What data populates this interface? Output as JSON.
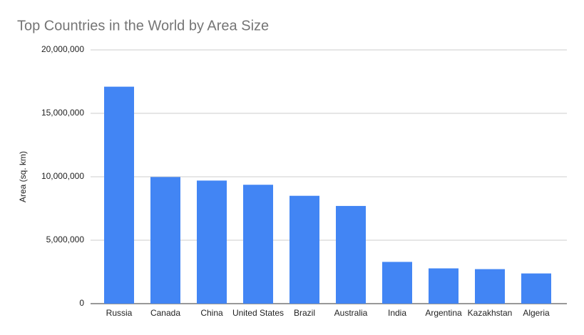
{
  "chart_data": {
    "type": "bar",
    "title": "Top Countries in the World by Area Size",
    "y_label": "Area (sq. km)",
    "categories": [
      "Russia",
      "Canada",
      "China",
      "United States",
      "Brazil",
      "Australia",
      "India",
      "Argentina",
      "Kazakhstan",
      "Algeria"
    ],
    "values": [
      17100000,
      9980000,
      9700000,
      9370000,
      8500000,
      7700000,
      3290000,
      2780000,
      2720000,
      2380000
    ],
    "color": "#4285f4",
    "ylim": [
      0,
      20000000
    ],
    "yticks": [
      0,
      {
        "value": 5000000,
        "label": "5,000,000"
      },
      {
        "value": 10000000,
        "label": "10,000,000"
      },
      {
        "value": 15000000,
        "label": "15,000,000"
      },
      {
        "value": 20000000,
        "label": "20,000,000"
      }
    ],
    "grid": true
  }
}
